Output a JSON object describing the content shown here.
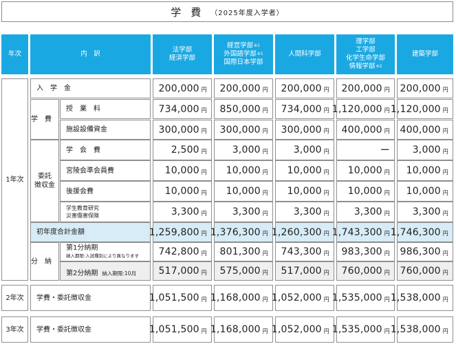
{
  "title": {
    "main": "学費",
    "sub": "（2025年度入学者）"
  },
  "header": {
    "year": "年次",
    "item": "内　訳",
    "cols": [
      {
        "lines": [
          "法学部",
          "経済学部"
        ],
        "marks": [
          "",
          ""
        ]
      },
      {
        "lines": [
          "経営学部",
          "外国語学部",
          "国際日本学部"
        ],
        "marks": [
          "※1",
          "※1",
          ""
        ]
      },
      {
        "lines": [
          "人間科学部"
        ],
        "marks": [
          ""
        ]
      },
      {
        "lines": [
          "理学部",
          "工学部",
          "化学生命学部",
          "情報学部"
        ],
        "marks": [
          "",
          "",
          "",
          "※2"
        ]
      },
      {
        "lines": [
          "建築学部"
        ],
        "marks": [
          ""
        ]
      }
    ]
  },
  "yen": "円",
  "year1": {
    "label": "1年次",
    "entrance": {
      "label": "入学金",
      "values": [
        "200,000",
        "200,000",
        "200,000",
        "200,000",
        "200,000"
      ]
    },
    "tuition_group": "学費",
    "tuition": {
      "label": "授業料",
      "values": [
        "734,000",
        "850,000",
        "734,000",
        "1,120,000",
        "1,120,000"
      ]
    },
    "facility": {
      "label": "施設設備資金",
      "values": [
        "300,000",
        "300,000",
        "300,000",
        "400,000",
        "400,000"
      ]
    },
    "entrusted_group": [
      "委託",
      "徴収金"
    ],
    "student_assoc": {
      "label": "学会費",
      "values": [
        "2,500",
        "3,000",
        "3,000",
        "ー",
        "3,000"
      ]
    },
    "miyakai": {
      "label": "宮陵会準会員費",
      "values": [
        "10,000",
        "10,000",
        "10,000",
        "10,000",
        "10,000"
      ]
    },
    "supporters": {
      "label": "後援会費",
      "values": [
        "10,000",
        "10,000",
        "10,000",
        "10,000",
        "10,000"
      ]
    },
    "insurance": {
      "label_lines": [
        "学生教育研究",
        "災害傷害保険"
      ],
      "values": [
        "3,300",
        "3,300",
        "3,300",
        "3,300",
        "3,300"
      ]
    },
    "total": {
      "label": "初年度合計金額",
      "values": [
        "1,259,800",
        "1,376,300",
        "1,260,300",
        "1,743,300",
        "1,746,300"
      ]
    },
    "installment_group": "分納",
    "first": {
      "label": "第1分納期",
      "note": "納入期限:入試種別により異なります",
      "values": [
        "742,800",
        "801,300",
        "743,300",
        "983,300",
        "986,300"
      ]
    },
    "second": {
      "label": "第2分納期",
      "note": "納入期限:10月",
      "values": [
        "517,000",
        "575,000",
        "517,000",
        "760,000",
        "760,000"
      ]
    }
  },
  "year2": {
    "label": "2年次",
    "item": "学費・委託徴収金",
    "values": [
      "1,051,500",
      "1,168,000",
      "1,052,000",
      "1,535,000",
      "1,538,000"
    ]
  },
  "year3": {
    "label": "3年次",
    "item": "学費・委託徴収金",
    "values": [
      "1,051,500",
      "1,168,000",
      "1,052,000",
      "1,535,000",
      "1,538,000"
    ]
  }
}
